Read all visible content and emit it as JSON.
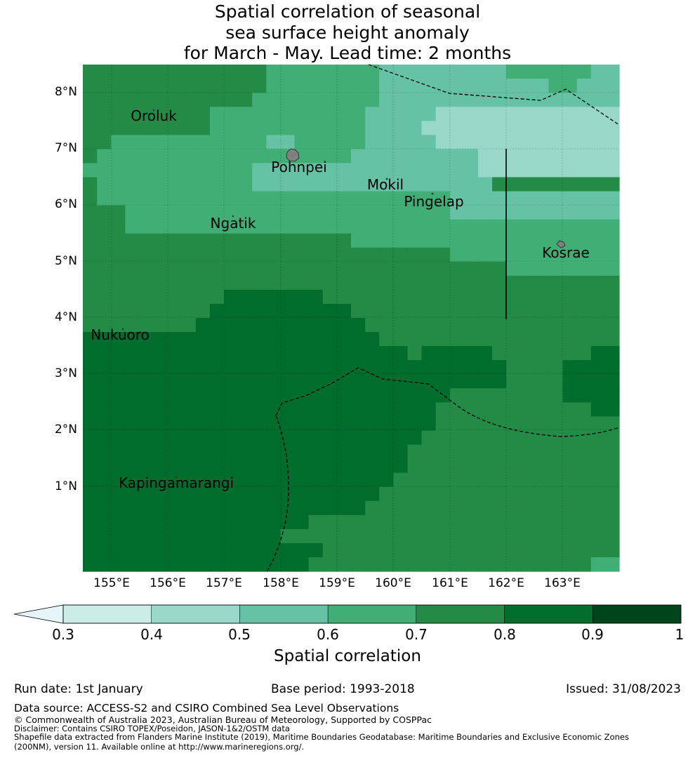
{
  "title": {
    "line1": "Spatial correlation of seasonal",
    "line2": "sea surface height anomaly",
    "line3": "for March - May. Lead time: 2 months"
  },
  "map": {
    "lon_labels": [
      "155°E",
      "156°E",
      "157°E",
      "158°E",
      "159°E",
      "160°E",
      "161°E",
      "162°E",
      "163°E"
    ],
    "lat_labels": [
      "8°N",
      "7°N",
      "6°N",
      "5°N",
      "4°N",
      "3°N",
      "2°N",
      "1°N"
    ],
    "places": [
      {
        "name": "Oroluk"
      },
      {
        "name": "Pohnpei"
      },
      {
        "name": "Mokil"
      },
      {
        "name": "Pingelap"
      },
      {
        "name": "Ngatik"
      },
      {
        "name": "Kosrae"
      },
      {
        "name": "Nukuoro"
      },
      {
        "name": "Kapingamarangi"
      }
    ],
    "land_color": "#808080"
  },
  "colorbar": {
    "ticks": [
      "0.3",
      "0.4",
      "0.5",
      "0.6",
      "0.7",
      "0.8",
      "0.9",
      "1"
    ],
    "label": "Spatial correlation",
    "colors": [
      "#e5f5f9",
      "#ccece6",
      "#99d8c9",
      "#66c2a4",
      "#41ae76",
      "#238b45",
      "#006d2c",
      "#00441b"
    ]
  },
  "info": {
    "run_date": "Run date: 1st January",
    "base_period": "Base period: 1993-2018",
    "issued": "Issued: 31/08/2023"
  },
  "footer": {
    "data_source": "Data source: ACCESS-S2 and CSIRO Combined Sea Level Observations",
    "copyright": "© Commonwealth of Australia 2023, Australian Bureau of Meteorology, Supported by COSPPac",
    "disclaimer": "Disclaimer: Contains CSIRO TOPEX/Poseidon, JASON-1&2/OSTM data",
    "shapefile_1": "Shapefile data extracted from Flanders Marine Institute (2019), Maritime Boundaries Geodatabase: Maritime Boundaries and Exclusive Economic Zones",
    "shapefile_2": "(200NM), version 11. Available online at http://www.marineregions.org/."
  }
}
